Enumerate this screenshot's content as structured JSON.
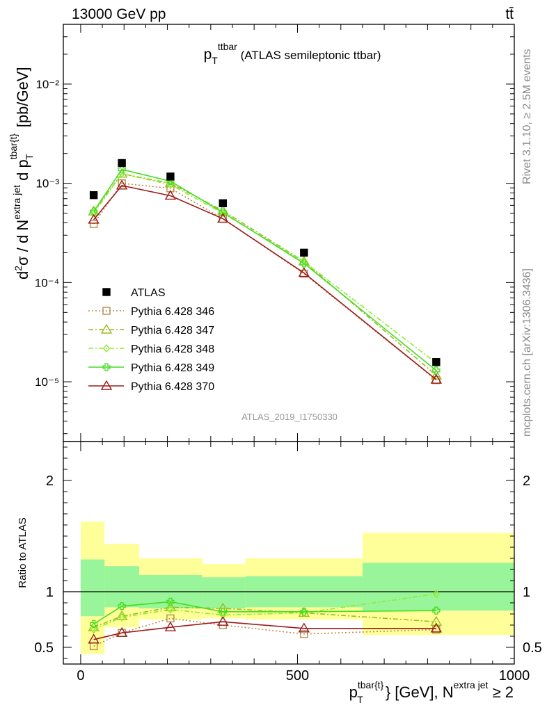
{
  "header": {
    "left": "13000 GeV pp",
    "right": "tt̄"
  },
  "side_labels": {
    "rivet": "Rivet 3.1.10, ≥ 2.5M events",
    "mcplots": "mcplots.cern.ch [arXiv:1306.3436]"
  },
  "chart_data": [
    {
      "type": "line",
      "title": {
        "main": "p",
        "sub": "T",
        "sup": "ttbar",
        "rest": " (ATLAS semileptonic ttbar)"
      },
      "ylabel": "d²σ / d N^extra jet d p_T^tbar{t} [pb/GeV]",
      "yscale": "log",
      "ylim": [
        2.5e-06,
        0.04
      ],
      "xlim": [
        -40,
        1000
      ],
      "y_ticks": [
        "10⁻⁵",
        "10⁻⁴",
        "10⁻³",
        "10⁻²"
      ],
      "watermark": "ATLAS_2019_I1750330",
      "x": [
        30,
        95,
        207,
        328,
        515,
        820
      ],
      "data": {
        "name": "ATLAS",
        "color": "#000000",
        "values": [
          0.00076,
          0.0016,
          0.00117,
          0.00063,
          0.0002,
          1.58e-05
        ]
      },
      "series": [
        {
          "name": "Pythia 6.428 346",
          "color": "#b88a4a",
          "marker": "square",
          "dash": "dotted",
          "values": [
            0.00039,
            0.001,
            0.00089,
            0.00044,
            0.000123,
            1.04e-05
          ]
        },
        {
          "name": "Pythia 6.428 347",
          "color": "#9bbb1e",
          "marker": "triangle",
          "dash": "dashdot",
          "values": [
            0.00052,
            0.00125,
            0.001,
            0.00053,
            0.000163,
            1.16e-05
          ]
        },
        {
          "name": "Pythia 6.428 348",
          "color": "#8cee2c",
          "marker": "diamond",
          "dash": "dashdot",
          "values": [
            0.0005,
            0.00125,
            0.00097,
            0.0005,
            0.000162,
            1.55e-05
          ]
        },
        {
          "name": "Pythia 6.428 349",
          "color": "#44dd22",
          "marker": "cross",
          "dash": "solid",
          "values": [
            0.00052,
            0.00138,
            0.00105,
            0.00051,
            0.000156,
            1.3e-05
          ]
        },
        {
          "name": "Pythia 6.428 370",
          "color": "#9b1b1b",
          "marker": "triangle",
          "dash": "solid",
          "values": [
            0.00043,
            0.00095,
            0.00075,
            0.00044,
            0.000125,
            1.05e-05
          ]
        }
      ]
    },
    {
      "type": "line",
      "title": "",
      "ylabel": "Ratio to ATLAS",
      "xlabel": "p_T^tbar{t} [GeV], N^extra jet ≥ 2",
      "xlim": [
        -40,
        1000
      ],
      "ylim": [
        0.35,
        2.35
      ],
      "x_ticks": [
        0,
        500,
        1000
      ],
      "y_ticks": [
        0.5,
        1,
        2
      ],
      "bins": [
        [
          0,
          55
        ],
        [
          55,
          135
        ],
        [
          135,
          280
        ],
        [
          280,
          380
        ],
        [
          380,
          650
        ],
        [
          650,
          1000
        ]
      ],
      "band_inner": [
        [
          0.78,
          1.29
        ],
        [
          0.86,
          1.23
        ],
        [
          0.85,
          1.15
        ],
        [
          0.85,
          1.13
        ],
        [
          0.86,
          1.14
        ],
        [
          0.83,
          1.26
        ]
      ],
      "band_outer": [
        [
          0.44,
          1.63
        ],
        [
          0.68,
          1.43
        ],
        [
          0.75,
          1.3
        ],
        [
          0.76,
          1.25
        ],
        [
          0.75,
          1.3
        ],
        [
          0.61,
          1.53
        ]
      ],
      "x": [
        30,
        95,
        207,
        328,
        515,
        820
      ],
      "series": [
        {
          "name": "Pythia 6.428 346",
          "values": [
            0.51,
            0.63,
            0.76,
            0.7,
            0.62,
            0.66
          ]
        },
        {
          "name": "Pythia 6.428 347",
          "values": [
            0.68,
            0.78,
            0.86,
            0.85,
            0.81,
            0.73
          ]
        },
        {
          "name": "Pythia 6.428 348",
          "values": [
            0.66,
            0.77,
            0.84,
            0.79,
            0.81,
            0.98
          ]
        },
        {
          "name": "Pythia 6.428 349",
          "values": [
            0.71,
            0.87,
            0.91,
            0.82,
            0.82,
            0.83
          ]
        },
        {
          "name": "Pythia 6.428 370",
          "values": [
            0.57,
            0.63,
            0.68,
            0.73,
            0.67,
            0.67
          ]
        }
      ]
    }
  ]
}
